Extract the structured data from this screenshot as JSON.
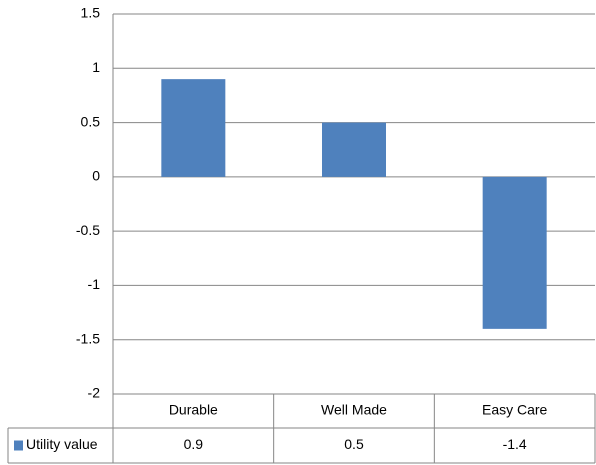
{
  "chart_data": {
    "type": "bar",
    "categories": [
      "Durable",
      "Well Made",
      "Easy Care"
    ],
    "series": [
      {
        "name": "Utility value",
        "color": "#4f81bd",
        "values": [
          0.9,
          0.5,
          -1.4
        ]
      }
    ],
    "ylim": [
      -2,
      1.5
    ],
    "yticks": [
      1.5,
      1,
      0.5,
      0,
      -0.5,
      -1,
      -1.5,
      -2
    ],
    "grid": true,
    "data_table": true
  }
}
